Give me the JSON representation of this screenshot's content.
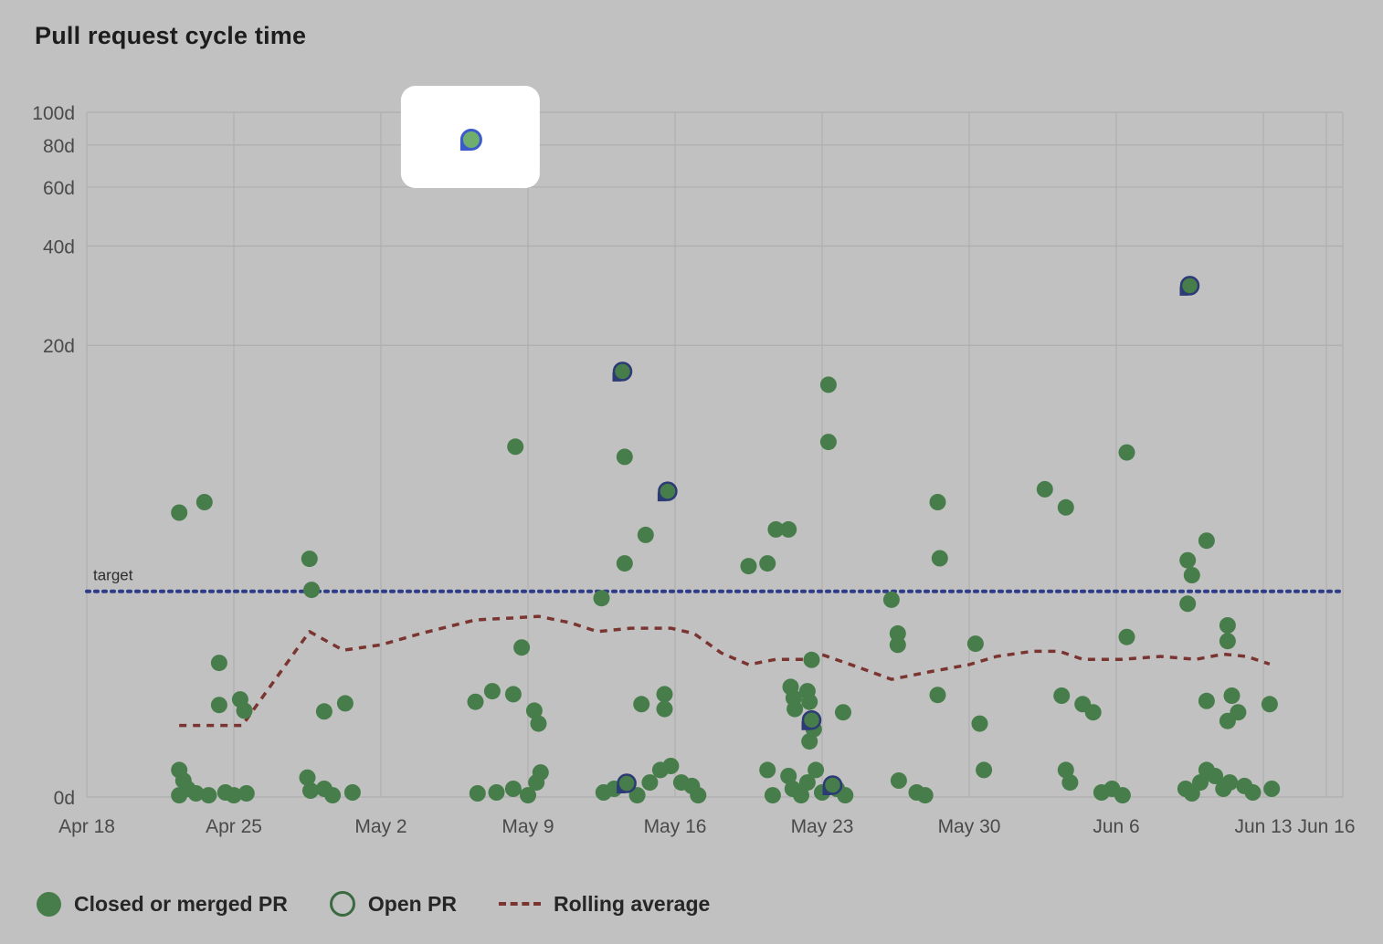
{
  "title": "Pull request cycle time",
  "colors": {
    "background": "#c1c1c1",
    "grid": "#aeaeae",
    "axis_text": "#4a4a4a",
    "text": "#1d1d1d",
    "dot_green": "#477d4a",
    "open_stroke": "#2c3a75",
    "target_blue": "#2f3d88",
    "rolling_red": "#7b3531",
    "highlight_fill": "#6fae6d",
    "highlight_ring": "#3b5bcc",
    "highlight_box": "#ffffff",
    "legend_outline": "#3c6a40"
  },
  "chart_data": {
    "type": "scatter",
    "title": "Pull request cycle time",
    "y_scale": "log1p",
    "ylim_days": [
      0,
      100
    ],
    "y_ticks": [
      {
        "label": "100d",
        "value": 100
      },
      {
        "label": "80d",
        "value": 80
      },
      {
        "label": "60d",
        "value": 60
      },
      {
        "label": "40d",
        "value": 40
      },
      {
        "label": "20d",
        "value": 20
      },
      {
        "label": "0d",
        "value": 0
      }
    ],
    "x_ticks": [
      {
        "label": "Apr 18",
        "day": 0
      },
      {
        "label": "Apr 25",
        "day": 7
      },
      {
        "label": "May 2",
        "day": 14
      },
      {
        "label": "May 9",
        "day": 21
      },
      {
        "label": "May 16",
        "day": 28
      },
      {
        "label": "May 23",
        "day": 35
      },
      {
        "label": "May 30",
        "day": 42
      },
      {
        "label": "Jun 6",
        "day": 49
      },
      {
        "label": "Jun 13",
        "day": 56
      },
      {
        "label": "Jun 16",
        "day": 59
      }
    ],
    "target": {
      "label": "target",
      "value_days": 3
    },
    "closed_points": [
      [
        4.4,
        5.8
      ],
      [
        5.6,
        6.3
      ],
      [
        6.3,
        1.47
      ],
      [
        6.3,
        0.86
      ],
      [
        7.3,
        0.93
      ],
      [
        7.5,
        0.79
      ],
      [
        4.4,
        0.2
      ],
      [
        4.6,
        0.117
      ],
      [
        4.8,
        0.057
      ],
      [
        4.4,
        0.012
      ],
      [
        5.2,
        0.025
      ],
      [
        5.8,
        0.012
      ],
      [
        6.6,
        0.031
      ],
      [
        7.0,
        0.012
      ],
      [
        7.6,
        0.025
      ],
      [
        10.6,
        3.98
      ],
      [
        10.7,
        3.04
      ],
      [
        11.3,
        0.78
      ],
      [
        12.3,
        0.88
      ],
      [
        10.5,
        0.14
      ],
      [
        10.65,
        0.044
      ],
      [
        11.3,
        0.057
      ],
      [
        11.7,
        0.012
      ],
      [
        12.65,
        0.031
      ],
      [
        20.4,
        9.6
      ],
      [
        20.7,
        1.74
      ],
      [
        18.5,
        0.9
      ],
      [
        19.3,
        1.04
      ],
      [
        20.3,
        1.0
      ],
      [
        21.3,
        0.79
      ],
      [
        21.5,
        0.64
      ],
      [
        18.6,
        0.025
      ],
      [
        19.5,
        0.031
      ],
      [
        20.3,
        0.057
      ],
      [
        21.0,
        0.012
      ],
      [
        21.4,
        0.103
      ],
      [
        21.6,
        0.18
      ],
      [
        25.6,
        8.9
      ],
      [
        26.6,
        4.85
      ],
      [
        25.6,
        3.83
      ],
      [
        24.5,
        2.82
      ],
      [
        26.4,
        0.87
      ],
      [
        27.5,
        1.0
      ],
      [
        27.5,
        0.81
      ],
      [
        24.6,
        0.031
      ],
      [
        25.1,
        0.057
      ],
      [
        26.2,
        0.012
      ],
      [
        26.8,
        0.103
      ],
      [
        27.3,
        0.2
      ],
      [
        27.8,
        0.233
      ],
      [
        28.3,
        0.103
      ],
      [
        28.8,
        0.077
      ],
      [
        29.1,
        0.012
      ],
      [
        31.5,
        3.74
      ],
      [
        32.4,
        3.83
      ],
      [
        32.8,
        5.07
      ],
      [
        33.4,
        5.07
      ],
      [
        32.4,
        0.2
      ],
      [
        32.65,
        0.012
      ],
      [
        35.3,
        15.1
      ],
      [
        35.3,
        9.95
      ],
      [
        33.5,
        1.1
      ],
      [
        33.65,
        0.95
      ],
      [
        33.7,
        0.81
      ],
      [
        34.3,
        1.04
      ],
      [
        34.4,
        0.9
      ],
      [
        34.5,
        1.52
      ],
      [
        34.4,
        0.455
      ],
      [
        34.6,
        0.58
      ],
      [
        36.0,
        0.77
      ],
      [
        33.4,
        0.152
      ],
      [
        33.6,
        0.057
      ],
      [
        34.0,
        0.012
      ],
      [
        34.3,
        0.103
      ],
      [
        34.7,
        0.2
      ],
      [
        35.0,
        0.031
      ],
      [
        35.7,
        0.057
      ],
      [
        36.1,
        0.012
      ],
      [
        38.3,
        2.78
      ],
      [
        38.6,
        2.01
      ],
      [
        38.6,
        1.79
      ],
      [
        40.5,
        6.3
      ],
      [
        40.6,
        4.0
      ],
      [
        40.5,
        0.99
      ],
      [
        38.65,
        0.117
      ],
      [
        39.5,
        0.031
      ],
      [
        39.9,
        0.012
      ],
      [
        42.3,
        1.81
      ],
      [
        42.5,
        0.64
      ],
      [
        42.7,
        0.2
      ],
      [
        45.6,
        6.96
      ],
      [
        46.6,
        6.04
      ],
      [
        46.4,
        0.98
      ],
      [
        47.4,
        0.87
      ],
      [
        47.9,
        0.77
      ],
      [
        46.6,
        0.2
      ],
      [
        46.8,
        0.103
      ],
      [
        48.3,
        0.031
      ],
      [
        48.8,
        0.057
      ],
      [
        49.5,
        9.2
      ],
      [
        49.5,
        1.94
      ],
      [
        49.3,
        0.012
      ],
      [
        52.4,
        3.93
      ],
      [
        52.6,
        3.46
      ],
      [
        53.3,
        4.63
      ],
      [
        52.4,
        2.68
      ],
      [
        54.3,
        2.18
      ],
      [
        54.3,
        1.86
      ],
      [
        53.3,
        0.91
      ],
      [
        54.5,
        0.98
      ],
      [
        54.3,
        0.67
      ],
      [
        54.8,
        0.77
      ],
      [
        52.3,
        0.057
      ],
      [
        52.6,
        0.025
      ],
      [
        53.0,
        0.103
      ],
      [
        53.3,
        0.2
      ],
      [
        53.7,
        0.152
      ],
      [
        54.1,
        0.057
      ],
      [
        54.4,
        0.103
      ],
      [
        55.1,
        0.077
      ],
      [
        55.5,
        0.031
      ],
      [
        56.3,
        0.87
      ],
      [
        56.4,
        0.057
      ]
    ],
    "open_points": [
      [
        25.5,
        16.6
      ],
      [
        27.65,
        6.85
      ],
      [
        52.5,
        30.4
      ],
      [
        34.5,
        0.68
      ],
      [
        25.7,
        0.097
      ],
      [
        35.5,
        0.083
      ]
    ],
    "highlighted_open_point": {
      "day": 18.3,
      "days": 83
    },
    "rolling_average": [
      [
        4.4,
        0.62
      ],
      [
        7.4,
        0.62
      ],
      [
        10.6,
        2.05
      ],
      [
        12.2,
        1.69
      ],
      [
        14.0,
        1.79
      ],
      [
        15.9,
        2.01
      ],
      [
        18.5,
        2.3
      ],
      [
        20.2,
        2.34
      ],
      [
        21.5,
        2.38
      ],
      [
        23.0,
        2.24
      ],
      [
        24.3,
        2.05
      ],
      [
        25.9,
        2.12
      ],
      [
        27.8,
        2.12
      ],
      [
        28.9,
        2.01
      ],
      [
        30.2,
        1.64
      ],
      [
        31.5,
        1.44
      ],
      [
        32.8,
        1.53
      ],
      [
        34.1,
        1.53
      ],
      [
        35.0,
        1.61
      ],
      [
        36.7,
        1.4
      ],
      [
        38.3,
        1.21
      ],
      [
        40.2,
        1.33
      ],
      [
        42.0,
        1.44
      ],
      [
        43.3,
        1.58
      ],
      [
        45.0,
        1.67
      ],
      [
        46.3,
        1.67
      ],
      [
        47.4,
        1.53
      ],
      [
        49.3,
        1.53
      ],
      [
        51.1,
        1.58
      ],
      [
        52.8,
        1.53
      ],
      [
        54.1,
        1.62
      ],
      [
        55.2,
        1.58
      ],
      [
        56.3,
        1.45
      ]
    ]
  },
  "legend": [
    {
      "label": "Closed or merged PR",
      "swatch": "filled"
    },
    {
      "label": "Open PR",
      "swatch": "outline"
    },
    {
      "label": "Rolling average",
      "swatch": "dashed"
    }
  ]
}
